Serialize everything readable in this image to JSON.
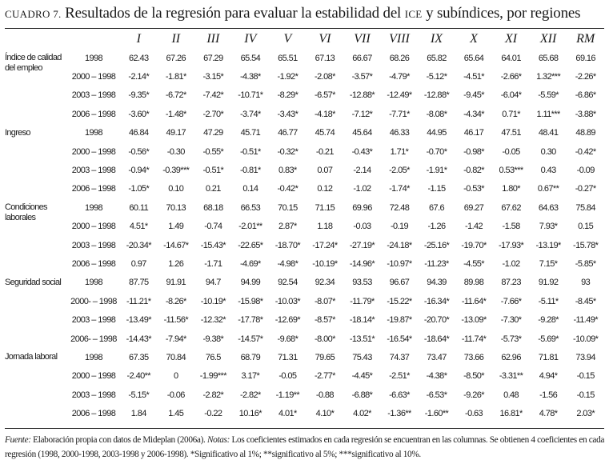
{
  "title": {
    "label": "CUADRO 7.",
    "text": "Resultados de la regresión para evaluar la estabilidad del",
    "ice": "ICE",
    "rest": "y subíndices, por regiones"
  },
  "columns": [
    "I",
    "II",
    "III",
    "IV",
    "V",
    "VI",
    "VII",
    "VIII",
    "IX",
    "X",
    "XI",
    "XII",
    "RM"
  ],
  "groups": [
    {
      "label": "Índice de calidad del empleo",
      "rows": [
        {
          "year": "1998",
          "values": [
            "62.43",
            "67.26",
            "67.29",
            "65.54",
            "65.51",
            "67.13",
            "66.67",
            "68.26",
            "65.82",
            "65.64",
            "64.01",
            "65.68",
            "69.16"
          ]
        },
        {
          "year": "2000 – 1998",
          "values": [
            "-2.14*",
            "-1.81*",
            "-3.15*",
            "-4.38*",
            "-1.92*",
            "-2.08*",
            "-3.57*",
            "-4.79*",
            "-5.12*",
            "-4.51*",
            "-2.66*",
            "1.32***",
            "-2.26*"
          ]
        },
        {
          "year": "2003 – 1998",
          "values": [
            "-9.35*",
            "-6.72*",
            "-7.42*",
            "-10.71*",
            "-8.29*",
            "-6.57*",
            "-12.88*",
            "-12.49*",
            "-12.88*",
            "-9.45*",
            "-6.04*",
            "-5.59*",
            "-6.86*"
          ]
        },
        {
          "year": "2006 – 1998",
          "values": [
            "-3.60*",
            "-1.48*",
            "-2.70*",
            "-3.74*",
            "-3.43*",
            "-4.18*",
            "-7.12*",
            "-7.71*",
            "-8.08*",
            "-4.34*",
            "0.71*",
            "1.11***",
            "-3.88*"
          ]
        }
      ]
    },
    {
      "label": "Ingreso",
      "rows": [
        {
          "year": "1998",
          "values": [
            "46.84",
            "49.17",
            "47.29",
            "45.71",
            "46.77",
            "45.74",
            "45.64",
            "46.33",
            "44.95",
            "46.17",
            "47.51",
            "48.41",
            "48.89"
          ]
        },
        {
          "year": "2000 – 1998",
          "values": [
            "-0.56*",
            "-0.30",
            "-0.55*",
            "-0.51*",
            "-0.32*",
            "-0.21",
            "-0.43*",
            "1.71*",
            "-0.70*",
            "-0.98*",
            "-0.05",
            "0.30",
            "-0.42*"
          ]
        },
        {
          "year": "2003 – 1998",
          "values": [
            "-0.94*",
            "-0.39***",
            "-0.51*",
            "-0.81*",
            "0.83*",
            "0.07",
            "-2.14",
            "-2.05*",
            "-1.91*",
            "-0.82*",
            "0.53***",
            "0.43",
            "-0.09"
          ]
        },
        {
          "year": "2006 – 1998",
          "values": [
            "-1.05*",
            "0.10",
            "0.21",
            "0.14",
            "-0.42*",
            "0.12",
            "-1.02",
            "-1.74*",
            "-1.15",
            "-0.53*",
            "1.80*",
            "0.67**",
            "-0.27*"
          ]
        }
      ]
    },
    {
      "label": "Condiciones laborales",
      "rows": [
        {
          "year": "1998",
          "values": [
            "60.11",
            "70.13",
            "68.18",
            "66.53",
            "70.15",
            "71.15",
            "69.96",
            "72.48",
            "67.6",
            "69.27",
            "67.62",
            "64.63",
            "75.84"
          ]
        },
        {
          "year": "2000 – 1998",
          "values": [
            "4.51*",
            "1.49",
            "-0.74",
            "-2.01**",
            "2.87*",
            "1.18",
            "-0.03",
            "-0.19",
            "-1.26",
            "-1.42",
            "-1.58",
            "7.93*",
            "0.15"
          ]
        },
        {
          "year": "2003 – 1998",
          "values": [
            "-20.34*",
            "-14.67*",
            "-15.43*",
            "-22.65*",
            "-18.70*",
            "-17.24*",
            "-27.19*",
            "-24.18*",
            "-25.16*",
            "-19.70*",
            "-17.93*",
            "-13.19*",
            "-15.78*"
          ]
        },
        {
          "year": "2006 – 1998",
          "values": [
            "0.97",
            "1.26",
            "-1.71",
            "-4.69*",
            "-4.98*",
            "-10.19*",
            "-14.96*",
            "-10.97*",
            "-11.23*",
            "-4.55*",
            "-1.02",
            "7.15*",
            "-5.85*"
          ]
        }
      ]
    },
    {
      "label": "Seguridad social",
      "rows": [
        {
          "year": "1998",
          "values": [
            "87.75",
            "91.91",
            "94.7",
            "94.99",
            "92.54",
            "92.34",
            "93.53",
            "96.67",
            "94.39",
            "89.98",
            "87.23",
            "91.92",
            "93"
          ]
        },
        {
          "year": "2000- – 1998",
          "values": [
            "-11.21*",
            "-8.26*",
            "-10.19*",
            "-15.98*",
            "-10.03*",
            "-8.07*",
            "-11.79*",
            "-15.22*",
            "-16.34*",
            "-11.64*",
            "-7.66*",
            "-5.11*",
            "-8.45*"
          ]
        },
        {
          "year": "2003 – 1998",
          "values": [
            "-13.49*",
            "-11.56*",
            "-12.32*",
            "-17.78*",
            "-12.69*",
            "-8.57*",
            "-18.14*",
            "-19.87*",
            "-20.70*",
            "-13.09*",
            "-7.30*",
            "-9.28*",
            "-11.49*"
          ]
        },
        {
          "year": "2006- – 1998",
          "values": [
            "-14.43*",
            "-7.94*",
            "-9.38*",
            "-14.57*",
            "-9.68*",
            "-8.00*",
            "-13.51*",
            "-16.54*",
            "-18.64*",
            "-11.74*",
            "-5.73*",
            "-5.69*",
            "-10.09*"
          ]
        }
      ]
    },
    {
      "label": "Jornada laboral",
      "rows": [
        {
          "year": "1998",
          "values": [
            "67.35",
            "70.84",
            "76.5",
            "68.79",
            "71.31",
            "79.65",
            "75.43",
            "74.37",
            "73.47",
            "73.66",
            "62.96",
            "71.81",
            "73.94"
          ]
        },
        {
          "year": "2000 – 1998",
          "values": [
            "-2.40**",
            "0",
            "-1.99***",
            "3.17*",
            "-0.05",
            "-2.77*",
            "-4.45*",
            "-2.51*",
            "-4.38*",
            "-8.50*",
            "-3.31**",
            "4.94*",
            "-0.15"
          ]
        },
        {
          "year": "2003 – 1998",
          "values": [
            "-5.15*",
            "-0.06",
            "-2.82*",
            "-2.82*",
            "-1.19**",
            "-0.88",
            "-6.88*",
            "-6.63*",
            "-6.53*",
            "-9.26*",
            "0.48",
            "-1.56",
            "-0.15"
          ]
        },
        {
          "year": "2006 – 1998",
          "values": [
            "1.84",
            "1.45",
            "-0.22",
            "10.16*",
            "4.01*",
            "4.10*",
            "4.02*",
            "-1.36**",
            "-1.60**",
            "-0.63",
            "16.81*",
            "4.78*",
            "2.03*"
          ]
        }
      ]
    }
  ],
  "footnote": {
    "fuente_label": "Fuente:",
    "fuente_text": "Elaboración propia con datos de Mideplan (2006a).",
    "notas_label": "Notas:",
    "notas_text": "Los coeficientes estimados en cada regresión se encuentran en las columnas. Se obtienen 4 coeficientes en cada regresión (1998, 2000-1998, 2003-1998 y 2006-1998). *Significativo al 1%; **significativo al 5%; ***significativo al 10%."
  }
}
